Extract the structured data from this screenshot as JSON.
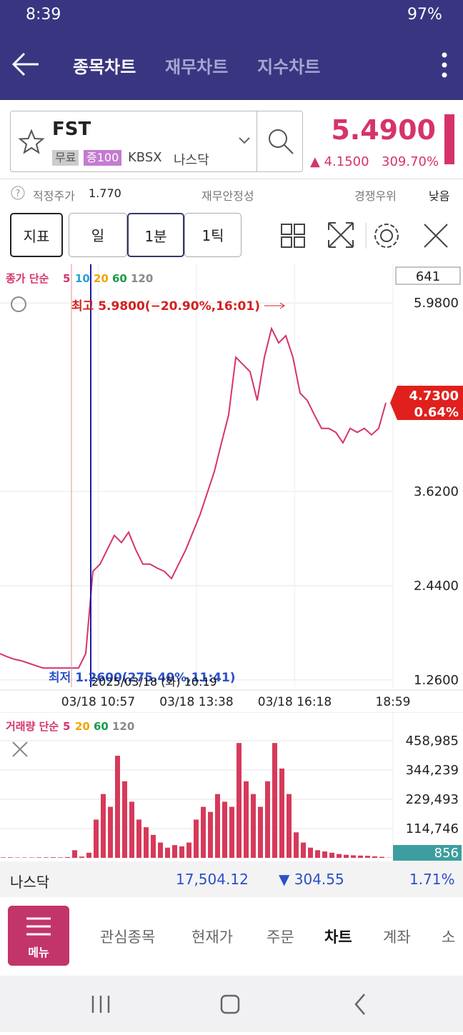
{
  "status_bar": {
    "time": "8:39",
    "battery": "97%"
  },
  "header": {
    "tabs": [
      "종목차트",
      "재무차트",
      "지수차트"
    ]
  },
  "stock": {
    "symbol": "FST",
    "tags": [
      "무료",
      "증100"
    ],
    "exchange": "KBSX",
    "market": "나스닥",
    "price": "5.4900",
    "change": "4.1500",
    "change_pct": "309.70%"
  },
  "info_row": {
    "fair_price_label": "적정주가",
    "fair_price": "1.770",
    "stability": "재무안정성",
    "competitive": "경쟁우위",
    "rating": "낮음"
  },
  "toolbar": {
    "indicator": "지표",
    "periods": [
      "일",
      "1분",
      "1틱"
    ]
  },
  "chart_data": [
    {
      "type": "line",
      "legend_title": "종가 단순",
      "ma_periods": [
        5,
        10,
        20,
        60,
        120
      ],
      "ma_colors": [
        "#d6336c",
        "#2aa0d8",
        "#f0a500",
        "#1c9a4a",
        "#888888"
      ],
      "color": "#d6336c",
      "count": "641",
      "high_label": "최고 5.9800(−20.90%,16:01)",
      "low_label": "최저 1.2600(275.40%,11:41)",
      "crosshair_label": "2025/03/18 (화) 10:19",
      "last_label": "4.7300",
      "last_change": "0.64%",
      "values": [
        1.59,
        1.55,
        1.52,
        1.5,
        1.47,
        1.44,
        1.41,
        1.41,
        1.41,
        1.41,
        1.41,
        1.41,
        1.59,
        2.62,
        2.71,
        2.89,
        3.07,
        2.98,
        3.11,
        2.89,
        2.71,
        2.71,
        2.66,
        2.62,
        2.53,
        2.71,
        2.89,
        3.11,
        3.33,
        3.6,
        3.87,
        4.23,
        4.58,
        5.3,
        5.21,
        5.12,
        4.76,
        5.3,
        5.66,
        5.48,
        5.57,
        5.3,
        4.85,
        4.76,
        4.58,
        4.41,
        4.41,
        4.36,
        4.23,
        4.41,
        4.36,
        4.41,
        4.33,
        4.41,
        4.73
      ],
      "xlim": [
        0,
        55
      ],
      "xticks": [
        {
          "value": 13.75,
          "label": "03/18 10:57"
        },
        {
          "value": 27.5,
          "label": "03/18 13:38"
        },
        {
          "value": 41.25,
          "label": "03/18 16:18"
        },
        {
          "value": 55,
          "label": "18:59"
        }
      ],
      "ylim": [
        1.17,
        6.42
      ],
      "yticks": [
        {
          "value": 5.98,
          "label": "5.9800"
        },
        {
          "value": 3.62,
          "label": "3.6200"
        },
        {
          "value": 2.44,
          "label": "2.4400"
        },
        {
          "value": 1.26,
          "label": "1.2600"
        }
      ],
      "grid": true
    },
    {
      "type": "bar",
      "legend_title": "거래량 단순",
      "ma_periods": [
        5,
        20,
        60,
        120
      ],
      "ma_colors": [
        "#d6336c",
        "#f0a500",
        "#1c9a4a",
        "#888888"
      ],
      "color": "#d63a5a",
      "values": [
        2000,
        2000,
        1500,
        1500,
        1500,
        2000,
        2000,
        2500,
        2000,
        3000,
        30000,
        5000,
        20000,
        150000,
        250000,
        200000,
        400000,
        300000,
        220000,
        150000,
        120000,
        90000,
        60000,
        40000,
        50000,
        45000,
        60000,
        150000,
        200000,
        180000,
        250000,
        220000,
        200000,
        450000,
        300000,
        250000,
        200000,
        300000,
        450000,
        350000,
        250000,
        100000,
        60000,
        40000,
        30000,
        25000,
        20000,
        15000,
        12000,
        10000,
        9000,
        8000,
        6000,
        4000,
        856
      ],
      "xlim": [
        0,
        55
      ],
      "ylim": [
        0,
        548500
      ],
      "yticks": [
        {
          "value": 458985,
          "label": "458,985"
        },
        {
          "value": 344239,
          "label": "344,239"
        },
        {
          "value": 229493,
          "label": "229,493"
        },
        {
          "value": 114746,
          "label": "114,746"
        }
      ],
      "grid": true
    }
  ],
  "index_bar": {
    "name": "나스닥",
    "value": "17,504.12",
    "change": "304.55",
    "change_pct": "1.71%"
  },
  "bottom_nav": {
    "menu": "메뉴",
    "items": [
      "관심종목",
      "현재가",
      "주문",
      "차트",
      "계좌",
      "소"
    ]
  }
}
